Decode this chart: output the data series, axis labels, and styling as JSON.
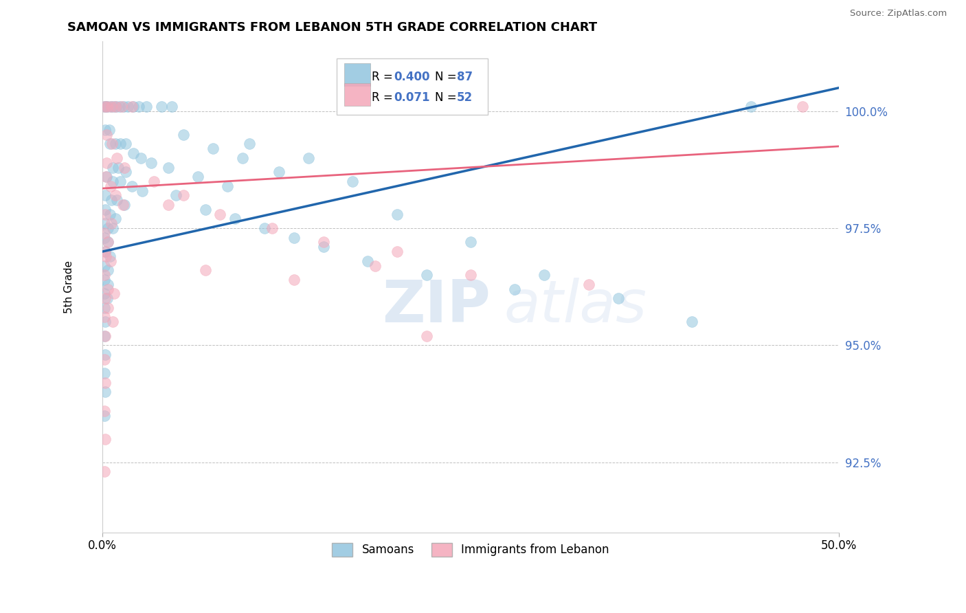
{
  "title": "SAMOAN VS IMMIGRANTS FROM LEBANON 5TH GRADE CORRELATION CHART",
  "source": "Source: ZipAtlas.com",
  "ylabel": "5th Grade",
  "x_range": [
    0.0,
    50.0
  ],
  "y_range": [
    91.0,
    101.5
  ],
  "y_ticks": [
    92.5,
    95.0,
    97.5,
    100.0
  ],
  "legend1_label": "Samoans",
  "legend2_label": "Immigrants from Lebanon",
  "R1": 0.4,
  "N1": 87,
  "R2": 0.071,
  "N2": 52,
  "blue_color": "#92c5de",
  "pink_color": "#f4a7b9",
  "blue_line_color": "#2166ac",
  "pink_line_color": "#e8637d",
  "tick_color": "#4472c4",
  "watermark_text": "ZIPatlas",
  "blue_line": [
    0.0,
    97.0,
    50.0,
    100.5
  ],
  "pink_line": [
    0.0,
    98.35,
    50.0,
    99.25
  ],
  "blue_dots": [
    [
      0.15,
      100.1
    ],
    [
      0.25,
      100.1
    ],
    [
      0.35,
      100.1
    ],
    [
      0.55,
      100.1
    ],
    [
      0.75,
      100.1
    ],
    [
      0.95,
      100.1
    ],
    [
      1.15,
      100.1
    ],
    [
      1.45,
      100.1
    ],
    [
      1.75,
      100.1
    ],
    [
      2.1,
      100.1
    ],
    [
      2.5,
      100.1
    ],
    [
      3.0,
      100.1
    ],
    [
      4.0,
      100.1
    ],
    [
      4.7,
      100.1
    ],
    [
      0.2,
      99.6
    ],
    [
      0.45,
      99.6
    ],
    [
      0.5,
      99.3
    ],
    [
      0.9,
      99.3
    ],
    [
      1.2,
      99.3
    ],
    [
      1.6,
      99.3
    ],
    [
      2.1,
      99.1
    ],
    [
      2.6,
      99.0
    ],
    [
      3.3,
      98.9
    ],
    [
      0.7,
      98.8
    ],
    [
      1.1,
      98.8
    ],
    [
      1.6,
      98.7
    ],
    [
      0.3,
      98.6
    ],
    [
      0.7,
      98.5
    ],
    [
      1.2,
      98.5
    ],
    [
      2.0,
      98.4
    ],
    [
      2.7,
      98.3
    ],
    [
      0.2,
      98.2
    ],
    [
      0.6,
      98.1
    ],
    [
      1.0,
      98.1
    ],
    [
      1.5,
      98.0
    ],
    [
      0.2,
      97.9
    ],
    [
      0.5,
      97.8
    ],
    [
      0.9,
      97.7
    ],
    [
      0.15,
      97.6
    ],
    [
      0.4,
      97.5
    ],
    [
      0.7,
      97.5
    ],
    [
      0.15,
      97.3
    ],
    [
      0.4,
      97.2
    ],
    [
      0.2,
      97.0
    ],
    [
      0.5,
      96.9
    ],
    [
      0.15,
      96.7
    ],
    [
      0.4,
      96.6
    ],
    [
      0.15,
      96.4
    ],
    [
      0.4,
      96.3
    ],
    [
      0.15,
      96.1
    ],
    [
      0.35,
      96.0
    ],
    [
      0.15,
      95.8
    ],
    [
      0.2,
      95.5
    ],
    [
      0.15,
      95.2
    ],
    [
      0.2,
      94.8
    ],
    [
      0.15,
      94.4
    ],
    [
      0.2,
      94.0
    ],
    [
      0.15,
      93.5
    ],
    [
      5.5,
      99.5
    ],
    [
      7.5,
      99.2
    ],
    [
      9.5,
      99.0
    ],
    [
      4.5,
      98.8
    ],
    [
      6.5,
      98.6
    ],
    [
      8.5,
      98.4
    ],
    [
      5.0,
      98.2
    ],
    [
      7.0,
      97.9
    ],
    [
      9.0,
      97.7
    ],
    [
      11.0,
      97.5
    ],
    [
      13.0,
      97.3
    ],
    [
      15.0,
      97.1
    ],
    [
      18.0,
      96.8
    ],
    [
      22.0,
      96.5
    ],
    [
      28.0,
      96.2
    ],
    [
      12.0,
      98.7
    ],
    [
      17.0,
      98.5
    ],
    [
      44.0,
      100.1
    ],
    [
      10.0,
      99.3
    ],
    [
      14.0,
      99.0
    ],
    [
      20.0,
      97.8
    ],
    [
      25.0,
      97.2
    ],
    [
      30.0,
      96.5
    ],
    [
      35.0,
      96.0
    ],
    [
      40.0,
      95.5
    ]
  ],
  "pink_dots": [
    [
      0.15,
      100.1
    ],
    [
      0.35,
      100.1
    ],
    [
      0.6,
      100.1
    ],
    [
      0.9,
      100.1
    ],
    [
      1.3,
      100.1
    ],
    [
      2.0,
      100.1
    ],
    [
      0.3,
      99.5
    ],
    [
      0.65,
      99.3
    ],
    [
      1.0,
      99.0
    ],
    [
      1.5,
      98.8
    ],
    [
      0.25,
      98.6
    ],
    [
      0.55,
      98.4
    ],
    [
      0.9,
      98.2
    ],
    [
      1.4,
      98.0
    ],
    [
      0.2,
      97.8
    ],
    [
      0.6,
      97.6
    ],
    [
      0.15,
      97.4
    ],
    [
      0.4,
      97.2
    ],
    [
      0.2,
      97.0
    ],
    [
      0.55,
      96.8
    ],
    [
      0.15,
      96.5
    ],
    [
      0.4,
      96.2
    ],
    [
      0.2,
      96.0
    ],
    [
      0.15,
      95.6
    ],
    [
      0.2,
      95.2
    ],
    [
      0.15,
      94.7
    ],
    [
      0.2,
      94.2
    ],
    [
      0.15,
      93.6
    ],
    [
      0.2,
      93.0
    ],
    [
      0.15,
      92.3
    ],
    [
      3.5,
      98.5
    ],
    [
      5.5,
      98.2
    ],
    [
      8.0,
      97.8
    ],
    [
      11.5,
      97.5
    ],
    [
      15.0,
      97.2
    ],
    [
      20.0,
      97.0
    ],
    [
      7.0,
      96.6
    ],
    [
      13.0,
      96.4
    ],
    [
      4.5,
      98.0
    ],
    [
      18.5,
      96.7
    ],
    [
      25.0,
      96.5
    ],
    [
      33.0,
      96.3
    ],
    [
      22.0,
      95.2
    ],
    [
      47.5,
      100.1
    ],
    [
      0.4,
      95.8
    ],
    [
      0.7,
      95.5
    ],
    [
      0.25,
      96.9
    ],
    [
      0.8,
      96.1
    ],
    [
      0.3,
      98.9
    ]
  ]
}
